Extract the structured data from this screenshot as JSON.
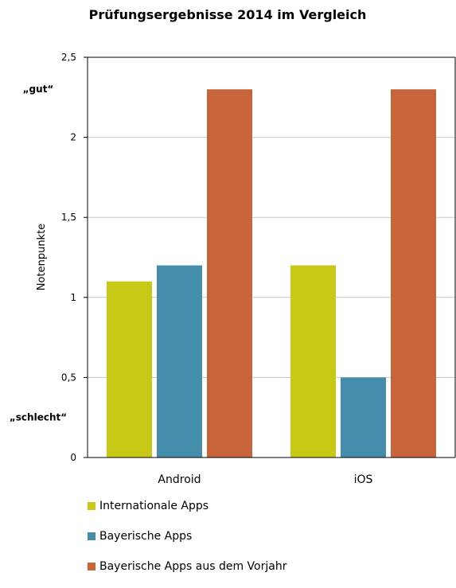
{
  "colors": {
    "international": "#c8c816",
    "bavarian": "#448dab",
    "previous_year": "#c8643a",
    "axis": "#000000",
    "grid": "#c8c8c8"
  },
  "chart_data": {
    "type": "bar",
    "title": "Prüfungsergebnisse 2014 im Vergleich",
    "xlabel": "",
    "ylabel": "Notenpunkte",
    "ylim": [
      0,
      2.5
    ],
    "ytick_labels": [
      "0",
      "0,5",
      "1",
      "1,5",
      "2",
      "2,5"
    ],
    "ytick_values": [
      0,
      0.5,
      1,
      1.5,
      2,
      2.5
    ],
    "categories": [
      "Android",
      "iOS"
    ],
    "series": [
      {
        "name": "Internationale Apps",
        "values": [
          1.1,
          1.2
        ]
      },
      {
        "name": "Bayerische Apps",
        "values": [
          1.2,
          0.5
        ]
      },
      {
        "name": "Bayerische Apps aus dem Vorjahr",
        "values": [
          2.3,
          2.3
        ]
      }
    ],
    "annotations": [
      {
        "text": "„gut“",
        "y": 2.3
      },
      {
        "text": "„schlecht“",
        "y": 0.25
      }
    ],
    "grid": true,
    "legend_position": "bottom-left"
  }
}
